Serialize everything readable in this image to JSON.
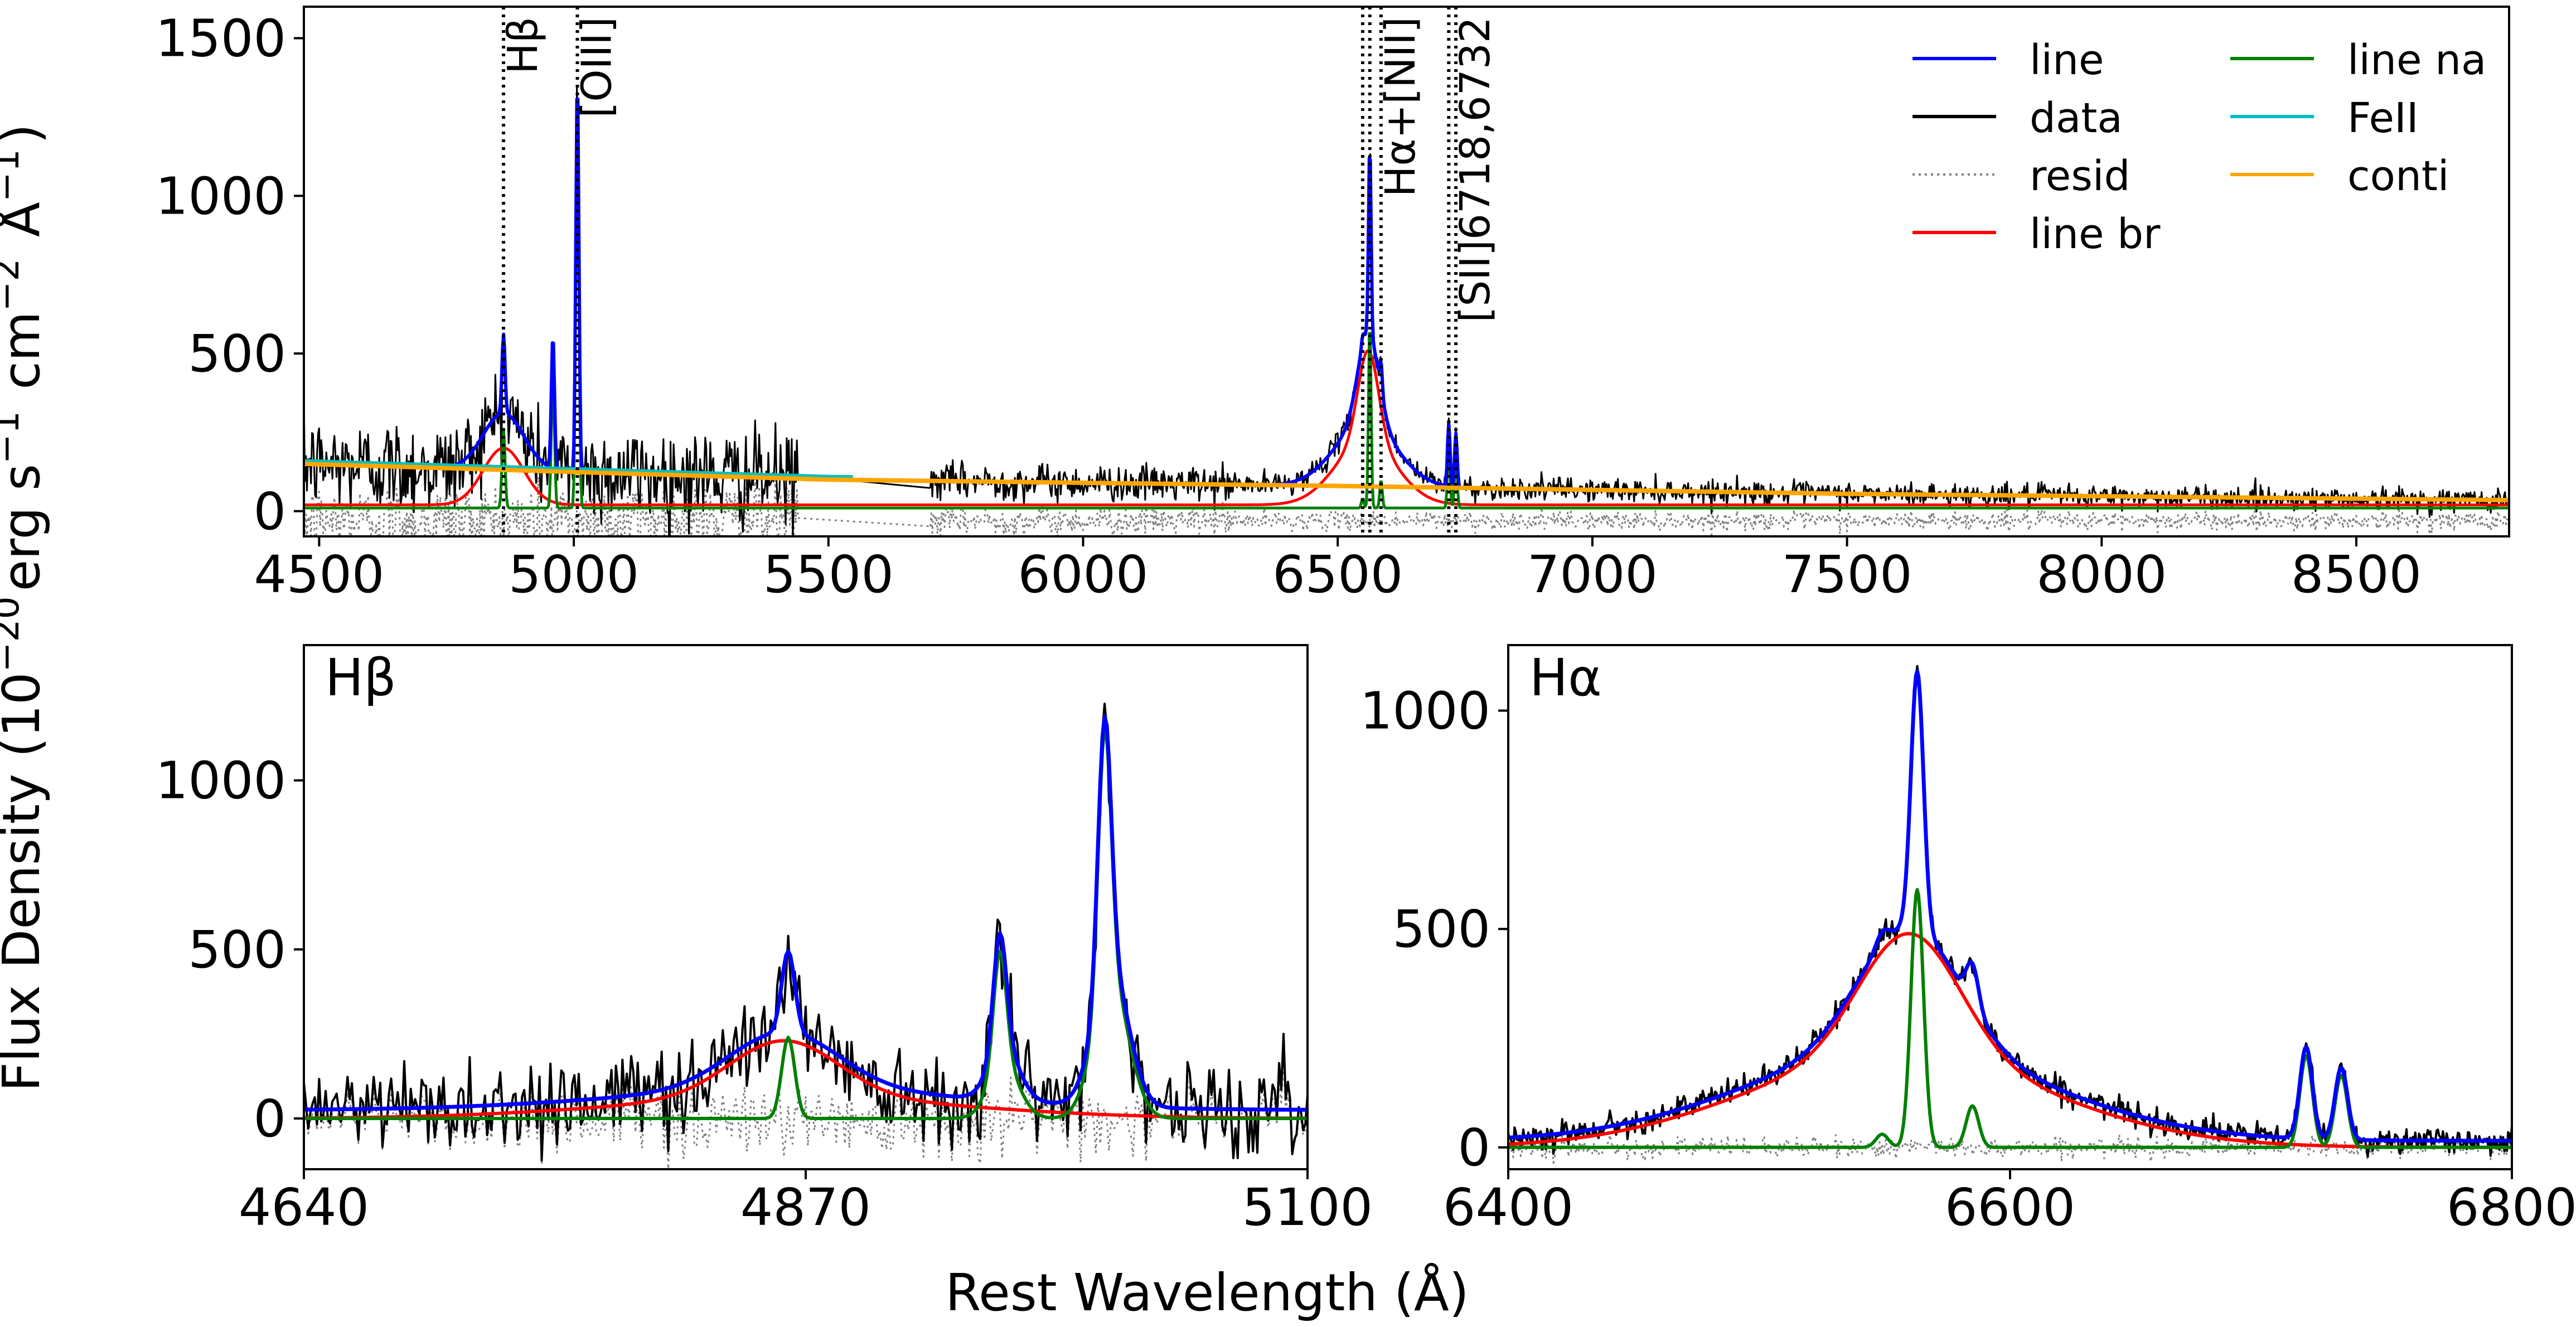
{
  "figure": {
    "ylabel": "Flux Density (10$^{-20}$erg s$^{-1}$ cm$^{-2}$ Å$^{-1}$)",
    "xlabel": "Rest Wavelength (Å)"
  },
  "legend": {
    "placement": "top-right",
    "entries": [
      {
        "label": "line",
        "color": "#0000ff",
        "style": "solid"
      },
      {
        "label": "data",
        "color": "#000000",
        "style": "solid"
      },
      {
        "label": "resid",
        "color": "#808080",
        "style": "dotted"
      },
      {
        "label": "line br",
        "color": "#ff0000",
        "style": "solid"
      },
      {
        "label": "line na",
        "color": "#008000",
        "style": "solid"
      },
      {
        "label": "FeII",
        "color": "#00bfbf",
        "style": "solid"
      },
      {
        "label": "conti",
        "color": "#ffa500",
        "style": "solid"
      }
    ]
  },
  "chart_data": [
    {
      "type": "line",
      "panel": "full-spectrum",
      "title": "",
      "xlim": [
        4470,
        8800
      ],
      "ylim": [
        -80,
        1600
      ],
      "xticks": [
        "4500",
        "5000",
        "5500",
        "6000",
        "6500",
        "7000",
        "7500",
        "8000",
        "8500"
      ],
      "yticks": [
        "0",
        "500",
        "1000",
        "1500"
      ],
      "line_markers": [
        {
          "label": "H$\\beta$",
          "x": [
            4862
          ]
        },
        {
          "label": "[OIII]",
          "x": [
            5007
          ]
        },
        {
          "label": "H$\\alpha$+[NII]",
          "x": [
            6549,
            6563,
            6585
          ]
        },
        {
          "label": "[SII]6718,6732",
          "x": [
            6718,
            6732
          ]
        }
      ],
      "data_gap": [
        5440,
        5700
      ],
      "continuum": {
        "x": [
          4470,
          5500,
          6500,
          7500,
          8800
        ],
        "y": [
          150,
          100,
          80,
          55,
          35
        ]
      },
      "emission_lines": [
        {
          "name": "Hb_br",
          "center": 4862,
          "peak": 180,
          "width": 40,
          "kind": "broad"
        },
        {
          "name": "Hb_na",
          "center": 4862,
          "peak": 250,
          "width": 3,
          "kind": "narrow"
        },
        {
          "name": "OIII4959",
          "center": 4959,
          "peak": 420,
          "width": 3,
          "kind": "narrow"
        },
        {
          "name": "OIII5007",
          "center": 5007,
          "peak": 1250,
          "width": 3,
          "kind": "narrow"
        },
        {
          "name": "Ha_br1",
          "center": 6555,
          "peak": 200,
          "width": 60,
          "kind": "broad"
        },
        {
          "name": "Ha_br2",
          "center": 6560,
          "peak": 290,
          "width": 20,
          "kind": "broad"
        },
        {
          "name": "Ha_na",
          "center": 6563,
          "peak": 600,
          "width": 2.5,
          "kind": "narrow"
        },
        {
          "name": "NII6549",
          "center": 6549,
          "peak": 30,
          "width": 2.5,
          "kind": "narrow"
        },
        {
          "name": "NII6585",
          "center": 6585,
          "peak": 90,
          "width": 2.5,
          "kind": "narrow"
        },
        {
          "name": "SII6718",
          "center": 6718,
          "peak": 200,
          "width": 2.5,
          "kind": "narrow"
        },
        {
          "name": "SII6732",
          "center": 6732,
          "peak": 170,
          "width": 2.5,
          "kind": "narrow"
        }
      ]
    },
    {
      "type": "line",
      "panel": "hbeta",
      "title": "Hβ",
      "xlim": [
        4640,
        5100
      ],
      "ylim": [
        -150,
        1400
      ],
      "xticks": [
        "4640",
        "4870",
        "5100"
      ],
      "yticks": [
        "0",
        "500",
        "1000"
      ],
      "continuum_level": 25,
      "emission_lines": [
        {
          "name": "Hb_br1",
          "center": 4860,
          "peak": 170,
          "width": 25,
          "kind": "broad"
        },
        {
          "name": "Hb_br2",
          "center": 4862,
          "peak": 60,
          "width": 80,
          "kind": "broad"
        },
        {
          "name": "Hb_na",
          "center": 4862,
          "peak": 240,
          "width": 3,
          "kind": "narrow"
        },
        {
          "name": "OIII4959",
          "center": 4959,
          "peak": 350,
          "width": 3,
          "kind": "narrow"
        },
        {
          "name": "OIII4959w",
          "center": 4961,
          "peak": 150,
          "width": 7,
          "kind": "narrow"
        },
        {
          "name": "OIII5007",
          "center": 5007,
          "peak": 780,
          "width": 3,
          "kind": "narrow"
        },
        {
          "name": "OIII5007w",
          "center": 5010,
          "peak": 400,
          "width": 8,
          "kind": "narrow"
        }
      ]
    },
    {
      "type": "line",
      "panel": "halpha",
      "title": "Hα",
      "xlim": [
        6400,
        6800
      ],
      "ylim": [
        -50,
        1150
      ],
      "xticks": [
        "6400",
        "6600",
        "6800"
      ],
      "yticks": [
        "0",
        "500",
        "1000"
      ],
      "continuum_level": 15,
      "emission_lines": [
        {
          "name": "Ha_br1",
          "center": 6555,
          "peak": 205,
          "width": 60,
          "kind": "broad"
        },
        {
          "name": "Ha_br2",
          "center": 6560,
          "peak": 285,
          "width": 20,
          "kind": "broad"
        },
        {
          "name": "Ha_na",
          "center": 6563,
          "peak": 590,
          "width": 2.5,
          "kind": "narrow"
        },
        {
          "name": "NII6549",
          "center": 6549,
          "peak": 30,
          "width": 2.5,
          "kind": "narrow"
        },
        {
          "name": "NII6585",
          "center": 6585,
          "peak": 95,
          "width": 2.5,
          "kind": "narrow"
        },
        {
          "name": "SII6718",
          "center": 6718,
          "peak": 210,
          "width": 2.5,
          "kind": "narrow"
        },
        {
          "name": "SII6732",
          "center": 6732,
          "peak": 165,
          "width": 2.5,
          "kind": "narrow"
        }
      ]
    }
  ]
}
